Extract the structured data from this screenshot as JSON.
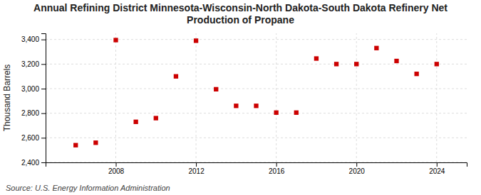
{
  "chart_data": {
    "type": "scatter",
    "title": "Annual Refining District Minnesota-Wisconsin-North Dakota-South Dakota Refinery Net Production of Propane",
    "ylabel": "Thousand Barrels",
    "source": "Source: U.S. Energy Information Administration",
    "x": [
      2006,
      2007,
      2008,
      2009,
      2010,
      2011,
      2012,
      2013,
      2014,
      2015,
      2016,
      2017,
      2018,
      2019,
      2020,
      2021,
      2022,
      2023,
      2024
    ],
    "values": [
      2540,
      2560,
      3395,
      2730,
      2760,
      3100,
      3390,
      2995,
      2860,
      2860,
      2805,
      2805,
      3245,
      3200,
      3200,
      3330,
      3225,
      3120,
      3200
    ],
    "color": "#cc0000",
    "marker": "square",
    "xlim": [
      2004.5,
      2025.5
    ],
    "xticks": [
      2008,
      2012,
      2016,
      2020,
      2024
    ],
    "ylim": [
      2400,
      3450
    ],
    "yticks": [
      {
        "value": 2400,
        "label": "2,400"
      },
      {
        "value": 2600,
        "label": "2,600"
      },
      {
        "value": 2800,
        "label": "2,800"
      },
      {
        "value": 3000,
        "label": "3,000"
      },
      {
        "value": 3200,
        "label": "3,200"
      },
      {
        "value": 3400,
        "label": "3,400"
      }
    ],
    "grid": true
  }
}
